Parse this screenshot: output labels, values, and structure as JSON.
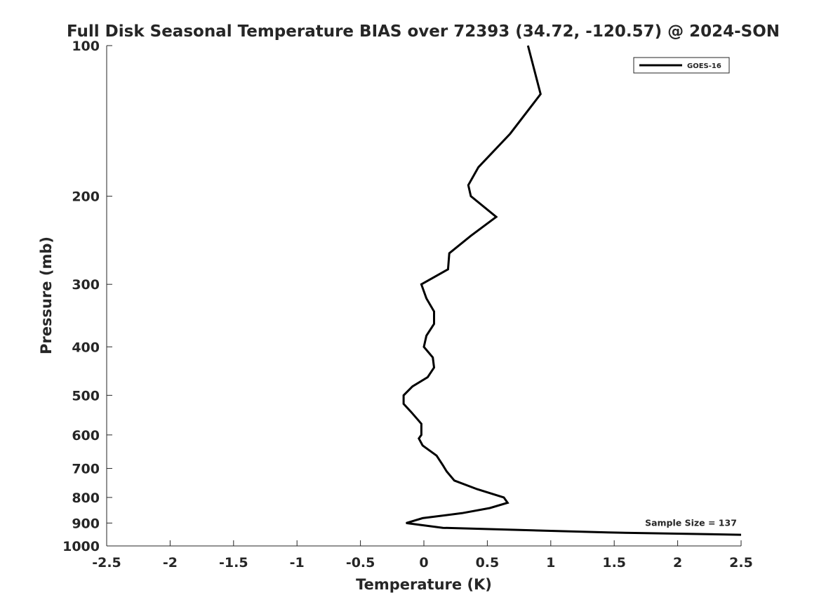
{
  "chart_data": {
    "type": "line",
    "title": "Full Disk Seasonal Temperature BIAS over 72393 (34.72, -120.57) @ 2024-SON",
    "xlabel": "Temperature (K)",
    "ylabel": "Pressure (mb)",
    "xlim": [
      -2.5,
      2.5
    ],
    "ylim": [
      100,
      1000
    ],
    "y_scale": "log",
    "y_reversed": true,
    "xticks": [
      -2.5,
      -2,
      -1.5,
      -1,
      -0.5,
      0,
      0.5,
      1,
      1.5,
      2,
      2.5
    ],
    "xtick_labels": [
      "-2.5",
      "-2",
      "-1.5",
      "-1",
      "-0.5",
      "0",
      "0.5",
      "1",
      "1.5",
      "2",
      "2.5"
    ],
    "yticks": [
      100,
      200,
      300,
      400,
      500,
      600,
      700,
      800,
      900,
      1000
    ],
    "ytick_labels": [
      "100",
      "200",
      "300",
      "400",
      "500",
      "600",
      "700",
      "800",
      "900",
      "1000"
    ],
    "grid": false,
    "legend_position": "top-right",
    "series": [
      {
        "name": "GOES-16",
        "color": "#000000",
        "points": [
          [
            0.82,
            100
          ],
          [
            0.92,
            125
          ],
          [
            0.68,
            150
          ],
          [
            0.43,
            175
          ],
          [
            0.35,
            190
          ],
          [
            0.37,
            200
          ],
          [
            0.57,
            220
          ],
          [
            0.37,
            240
          ],
          [
            0.2,
            260
          ],
          [
            0.19,
            280
          ],
          [
            -0.02,
            300
          ],
          [
            0.02,
            320
          ],
          [
            0.08,
            340
          ],
          [
            0.08,
            360
          ],
          [
            0.02,
            380
          ],
          [
            0.0,
            400
          ],
          [
            0.07,
            420
          ],
          [
            0.08,
            440
          ],
          [
            0.03,
            460
          ],
          [
            -0.09,
            480
          ],
          [
            -0.16,
            500
          ],
          [
            -0.16,
            520
          ],
          [
            -0.1,
            540
          ],
          [
            -0.02,
            570
          ],
          [
            -0.02,
            600
          ],
          [
            -0.04,
            610
          ],
          [
            -0.01,
            630
          ],
          [
            0.1,
            660
          ],
          [
            0.15,
            690
          ],
          [
            0.18,
            710
          ],
          [
            0.24,
            740
          ],
          [
            0.42,
            770
          ],
          [
            0.63,
            800
          ],
          [
            0.66,
            820
          ],
          [
            0.52,
            840
          ],
          [
            0.3,
            860
          ],
          [
            -0.01,
            880
          ],
          [
            -0.14,
            900
          ],
          [
            0.15,
            920
          ],
          [
            1.45,
            940
          ],
          [
            2.5,
            950
          ]
        ]
      }
    ],
    "annotations": [
      {
        "text": "Sample Size = 137",
        "x": 2.4,
        "y": 900
      }
    ]
  }
}
